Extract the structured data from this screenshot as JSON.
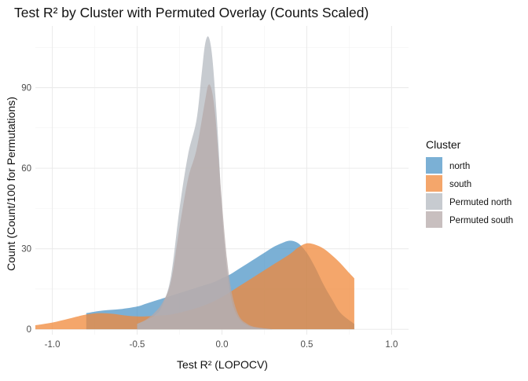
{
  "chart_data": {
    "type": "area",
    "title": "Test R² by Cluster with Permuted Overlay (Counts Scaled)",
    "xlabel": "Test R² (LOPOCV)",
    "ylabel": "Count (Count/100 for Permutations)",
    "xlim": [
      -1.1,
      1.1
    ],
    "ylim": [
      -2,
      113
    ],
    "xticks": [
      -1.0,
      -0.5,
      0.0,
      0.5,
      1.0
    ],
    "xtick_labels": [
      "-1.0",
      "-0.5",
      "0.0",
      "0.5",
      "1.0"
    ],
    "yticks": [
      0,
      30,
      60,
      90
    ],
    "ytick_labels": [
      "0",
      "30",
      "60",
      "90"
    ],
    "grid": true,
    "legend": {
      "title": "Cluster",
      "position": "right"
    },
    "series": [
      {
        "name": "north",
        "color": "#4f95c7",
        "x": [
          -0.8,
          -0.7,
          -0.6,
          -0.5,
          -0.45,
          -0.4,
          -0.35,
          -0.3,
          -0.25,
          -0.2,
          -0.15,
          -0.1,
          -0.05,
          0.0,
          0.05,
          0.1,
          0.15,
          0.2,
          0.25,
          0.3,
          0.35,
          0.4,
          0.45,
          0.5,
          0.55,
          0.6,
          0.65,
          0.7,
          0.78
        ],
        "y": [
          6,
          7,
          7.5,
          8.5,
          9.5,
          10.5,
          11.5,
          12.5,
          13.5,
          14.5,
          15.5,
          16.5,
          17.5,
          19,
          20.5,
          22.5,
          24.5,
          26.5,
          28.5,
          30.5,
          32,
          33,
          32,
          28.5,
          23,
          16.5,
          11,
          6,
          2
        ]
      },
      {
        "name": "south",
        "color": "#f0883a",
        "x": [
          -1.1,
          -1.0,
          -0.9,
          -0.8,
          -0.72,
          -0.65,
          -0.6,
          -0.55,
          -0.5,
          -0.45,
          -0.4,
          -0.35,
          -0.3,
          -0.2,
          -0.1,
          0.0,
          0.1,
          0.2,
          0.3,
          0.4,
          0.45,
          0.5,
          0.55,
          0.6,
          0.65,
          0.7,
          0.75,
          0.78
        ],
        "y": [
          1.5,
          2.5,
          4,
          5.5,
          6,
          5.8,
          5.4,
          5,
          4.8,
          4.8,
          5,
          5.2,
          5.5,
          7,
          9,
          12,
          16,
          20,
          24,
          28,
          30.5,
          32,
          31.5,
          30,
          27.5,
          24.5,
          21,
          19
        ]
      },
      {
        "name": "Permuted north",
        "color": "#b4bac0",
        "x": [
          -0.5,
          -0.4,
          -0.35,
          -0.3,
          -0.25,
          -0.2,
          -0.15,
          -0.12,
          -0.1,
          -0.08,
          -0.06,
          -0.04,
          -0.02,
          0.0,
          0.03,
          0.06,
          0.1,
          0.15,
          0.2,
          0.3
        ],
        "y": [
          2,
          5,
          9,
          20,
          45,
          65,
          78,
          95,
          106,
          109,
          103,
          88,
          68,
          44,
          22,
          10,
          4,
          1.5,
          0.6,
          0
        ]
      },
      {
        "name": "Permuted south",
        "color": "#b6a9a9",
        "x": [
          -0.5,
          -0.45,
          -0.4,
          -0.35,
          -0.3,
          -0.25,
          -0.2,
          -0.15,
          -0.1,
          -0.08,
          -0.06,
          -0.04,
          -0.02,
          0.0,
          0.03,
          0.06,
          0.1,
          0.15,
          0.2,
          0.3
        ],
        "y": [
          2,
          3.5,
          6,
          10,
          18,
          38,
          56,
          67,
          85,
          91,
          89,
          80,
          64,
          47,
          26,
          13,
          5,
          2,
          0.8,
          0
        ]
      }
    ]
  }
}
